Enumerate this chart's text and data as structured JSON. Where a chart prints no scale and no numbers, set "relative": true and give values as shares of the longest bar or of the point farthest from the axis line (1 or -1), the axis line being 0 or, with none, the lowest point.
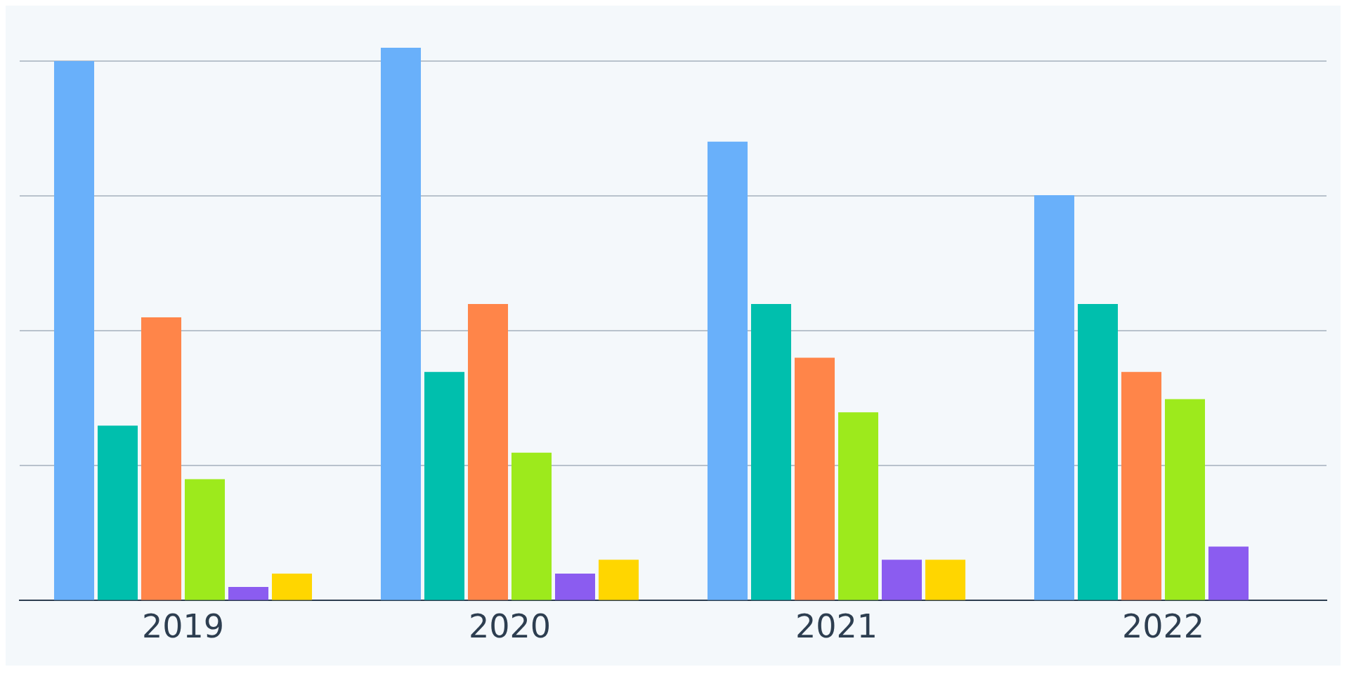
{
  "chart_data": {
    "type": "bar",
    "categories": [
      "2019",
      "2020",
      "2021",
      "2022"
    ],
    "relative": true,
    "grid": "y",
    "legend": false,
    "series": [
      {
        "color": "#69b0fa",
        "values": [
          0.976,
          1,
          0.83,
          0.733
        ]
      },
      {
        "color": "#00bfad",
        "values": [
          0.316,
          0.413,
          0.536,
          0.536
        ]
      },
      {
        "color": "#ff8549",
        "values": [
          0.512,
          0.536,
          0.439,
          0.413
        ]
      },
      {
        "color": "#9dea1c",
        "values": [
          0.219,
          0.267,
          0.34,
          0.364
        ]
      },
      {
        "color": "#8b5cf0",
        "values": [
          0.024,
          0.048,
          0.073,
          0.097
        ]
      },
      {
        "color": "#ffd600",
        "values": [
          0.048,
          0.073,
          0.073,
          null
        ]
      }
    ]
  }
}
